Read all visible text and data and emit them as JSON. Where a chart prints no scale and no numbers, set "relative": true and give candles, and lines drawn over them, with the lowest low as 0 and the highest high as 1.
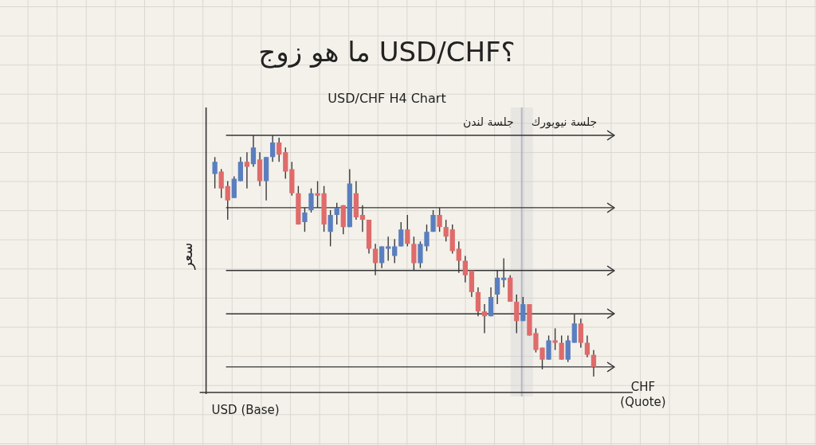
{
  "chart_data": {
    "type": "candlestick",
    "title": "ما هو زوج USD/CHF؟",
    "subtitle": "USD/CHF H4 Chart",
    "xlabel": "USD (Base)",
    "ylabel": "سعر",
    "relative": true,
    "tick_labels": false,
    "categories": [
      null,
      null,
      null,
      null,
      null,
      null,
      null,
      null,
      null,
      null,
      null,
      null,
      null,
      null,
      null,
      null,
      null,
      null,
      null,
      null,
      null,
      null,
      null,
      null,
      null,
      null,
      null,
      null,
      null,
      null,
      null,
      null,
      null,
      null,
      null,
      null,
      null,
      null,
      null,
      null,
      null,
      null,
      null,
      null,
      null,
      null,
      null,
      null,
      null,
      null,
      null,
      null,
      null,
      null,
      null,
      null,
      null,
      null,
      null,
      null
    ],
    "ohlc": [
      [
        0.84,
        0.91,
        0.78,
        0.89
      ],
      [
        0.85,
        0.86,
        0.74,
        0.78
      ],
      [
        0.79,
        0.81,
        0.65,
        0.73
      ],
      [
        0.74,
        0.83,
        0.74,
        0.82
      ],
      [
        0.81,
        0.91,
        0.81,
        0.89
      ],
      [
        0.89,
        0.93,
        0.78,
        0.87
      ],
      [
        0.88,
        1,
        0.87,
        0.95
      ],
      [
        0.9,
        0.93,
        0.79,
        0.81
      ],
      [
        0.81,
        0.91,
        0.73,
        0.91
      ],
      [
        0.91,
        1,
        0.89,
        0.97
      ],
      [
        0.97,
        0.99,
        0.89,
        0.92
      ],
      [
        0.93,
        0.95,
        0.82,
        0.85
      ],
      [
        0.86,
        0.89,
        0.75,
        0.76
      ],
      [
        0.76,
        0.79,
        0.63,
        0.63
      ],
      [
        0.64,
        0.7,
        0.6,
        0.68
      ],
      [
        0.69,
        0.78,
        0.68,
        0.76
      ],
      [
        0.76,
        0.81,
        0.7,
        0.75
      ],
      [
        0.76,
        0.79,
        0.6,
        0.63
      ],
      [
        0.6,
        0.69,
        0.54,
        0.67
      ],
      [
        0.67,
        0.72,
        0.63,
        0.7
      ],
      [
        0.71,
        0.71,
        0.59,
        0.62
      ],
      [
        0.62,
        0.86,
        0.62,
        0.8
      ],
      [
        0.76,
        0.81,
        0.65,
        0.66
      ],
      [
        0.67,
        0.71,
        0.6,
        0.65
      ],
      [
        0.65,
        0.65,
        0.51,
        0.53
      ],
      [
        0.53,
        0.55,
        0.42,
        0.47
      ],
      [
        0.47,
        0.54,
        0.45,
        0.54
      ],
      [
        0.53,
        0.58,
        0.48,
        0.54
      ],
      [
        0.5,
        0.57,
        0.47,
        0.54
      ],
      [
        0.54,
        0.64,
        0.54,
        0.61
      ],
      [
        0.61,
        0.67,
        0.54,
        0.55
      ],
      [
        0.55,
        0.58,
        0.44,
        0.47
      ],
      [
        0.47,
        0.56,
        0.45,
        0.55
      ],
      [
        0.54,
        0.63,
        0.52,
        0.6
      ],
      [
        0.6,
        0.69,
        0.6,
        0.67
      ],
      [
        0.67,
        0.7,
        0.6,
        0.62
      ],
      [
        0.62,
        0.65,
        0.56,
        0.58
      ],
      [
        0.61,
        0.63,
        0.51,
        0.52
      ],
      [
        0.53,
        0.56,
        0.43,
        0.48
      ],
      [
        0.48,
        0.5,
        0.39,
        0.42
      ],
      [
        0.44,
        0.44,
        0.33,
        0.35
      ],
      [
        0.35,
        0.37,
        0.25,
        0.27
      ],
      [
        0.27,
        0.3,
        0.18,
        0.25
      ],
      [
        0.25,
        0.37,
        0.25,
        0.33
      ],
      [
        0.34,
        0.44,
        0.3,
        0.41
      ],
      [
        0.4,
        0.49,
        0.37,
        0.41
      ],
      [
        0.41,
        0.42,
        0.31,
        0.31
      ],
      [
        0.31,
        0.34,
        0.18,
        0.23
      ],
      [
        0.23,
        0.33,
        0.23,
        0.3
      ],
      [
        0.3,
        0.3,
        0.17,
        0.17
      ],
      [
        0.18,
        0.2,
        0.1,
        0.11
      ],
      [
        0.12,
        0.12,
        0.03,
        0.07
      ],
      [
        0.07,
        0.17,
        0.07,
        0.15
      ],
      [
        0.15,
        0.2,
        0.11,
        0.14
      ],
      [
        0.14,
        0.17,
        0.07,
        0.07
      ],
      [
        0.07,
        0.17,
        0.06,
        0.15
      ],
      [
        0.14,
        0.26,
        0.14,
        0.22
      ],
      [
        0.22,
        0.24,
        0.12,
        0.14
      ],
      [
        0.14,
        0.17,
        0.08,
        0.09
      ],
      [
        0.09,
        0.11,
        0,
        0.04
      ]
    ],
    "colors": [
      "#5a7fc0",
      "#df6b6b",
      "#df6b6b",
      "#5a7fc0",
      "#5a7fc0",
      "#df6b6b",
      "#5a7fc0",
      "#df6b6b",
      "#5a7fc0",
      "#5a7fc0",
      "#df6b6b",
      "#df6b6b",
      "#df6b6b",
      "#df6b6b",
      "#5a7fc0",
      "#5a7fc0",
      "#df6b6b",
      "#df6b6b",
      "#5a7fc0",
      "#5a7fc0",
      "#df6b6b",
      "#5a7fc0",
      "#df6b6b",
      "#df6b6b",
      "#df6b6b",
      "#df6b6b",
      "#5a7fc0",
      "#5a7fc0",
      "#5a7fc0",
      "#5a7fc0",
      "#df6b6b",
      "#df6b6b",
      "#5a7fc0",
      "#5a7fc0",
      "#5a7fc0",
      "#df6b6b",
      "#df6b6b",
      "#df6b6b",
      "#df6b6b",
      "#df6b6b",
      "#df6b6b",
      "#df6b6b",
      "#df6b6b",
      "#5a7fc0",
      "#5a7fc0",
      "#5a7fc0",
      "#df6b6b",
      "#df6b6b",
      "#5a7fc0",
      "#df6b6b",
      "#df6b6b",
      "#df6b6b",
      "#5a7fc0",
      "#df6b6b",
      "#df6b6b",
      "#5a7fc0",
      "#5a7fc0",
      "#df6b6b",
      "#df6b6b",
      "#df6b6b"
    ],
    "ref_lines": [
      {
        "axis": "y",
        "value": 1.0,
        "color": "#333333"
      },
      {
        "axis": "y",
        "value": 0.7,
        "color": "#333333"
      },
      {
        "axis": "y",
        "value": 0.44,
        "color": "#333333"
      },
      {
        "axis": "y",
        "value": 0.26,
        "color": "#333333"
      },
      {
        "axis": "y",
        "value": 0.04,
        "color": "#333333"
      }
    ],
    "annotations": [
      "جلسة لندن",
      "جلسة نيويورك",
      "CHF\n(Quote)"
    ],
    "grid": false,
    "legend": false
  }
}
